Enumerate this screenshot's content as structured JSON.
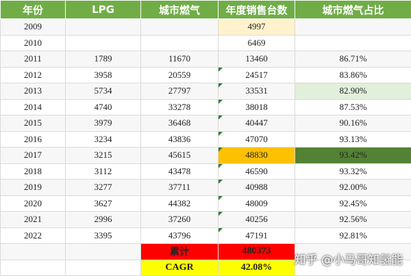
{
  "table": {
    "header": [
      "年份",
      "LPG",
      "城市燃气",
      "年度销售台数",
      "城市燃气占比"
    ],
    "rows": [
      [
        "2009",
        null,
        null,
        "4997",
        null
      ],
      [
        "2010",
        null,
        null,
        "6469",
        null
      ],
      [
        "2011",
        "1789",
        "11670",
        "13460",
        "86.71%"
      ],
      [
        "2012",
        "3958",
        "20559",
        "24517",
        "83.86%"
      ],
      [
        "2013",
        "5734",
        "27797",
        "33531",
        "82.90%"
      ],
      [
        "2014",
        "4740",
        "33278",
        "38018",
        "87.53%"
      ],
      [
        "2015",
        "3979",
        "36468",
        "40447",
        "90.16%"
      ],
      [
        "2016",
        "3234",
        "43836",
        "47070",
        "93.13%"
      ],
      [
        "2017",
        "3215",
        "45615",
        "48830",
        "93.42%"
      ],
      [
        "2018",
        "3112",
        "43478",
        "46590",
        "93.32%"
      ],
      [
        "2019",
        "3277",
        "37711",
        "40988",
        "92.00%"
      ],
      [
        "2020",
        "3627",
        "44382",
        "48009",
        "92.45%"
      ],
      [
        "2021",
        "2996",
        "37260",
        "40256",
        "92.56%"
      ],
      [
        "2022",
        "3395",
        "43796",
        "47191",
        "92.81%"
      ],
      [
        null,
        null,
        "累计",
        "480373",
        null
      ],
      [
        null,
        null,
        "CAGR",
        "42.08%",
        null
      ]
    ]
  },
  "watermark": "知乎 @小马哥知氢能"
}
